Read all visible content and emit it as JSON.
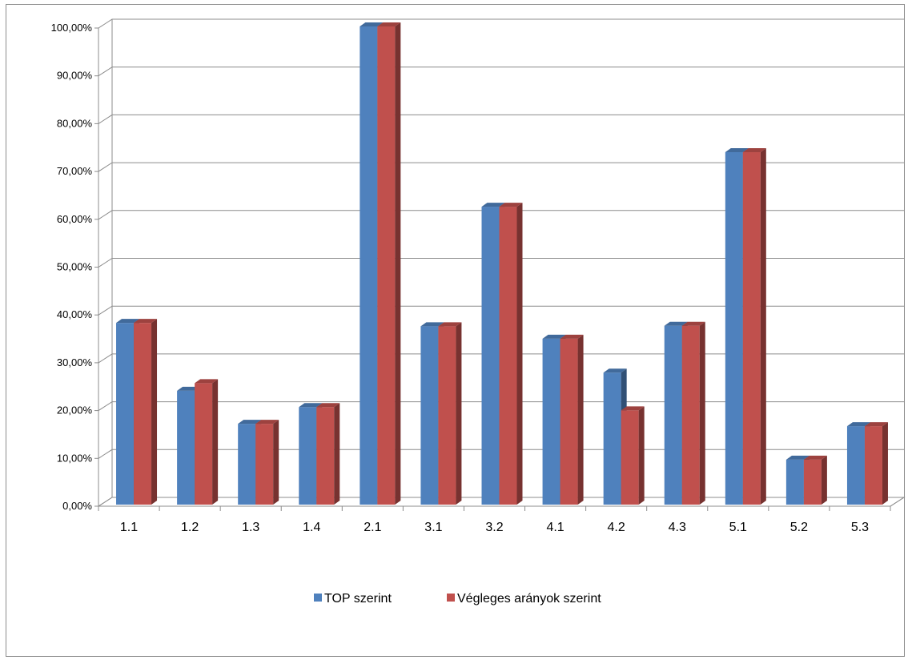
{
  "chart_data": {
    "type": "bar",
    "categories": [
      "1.1",
      "1.2",
      "1.3",
      "1.4",
      "2.1",
      "3.1",
      "3.2",
      "4.1",
      "4.2",
      "4.3",
      "5.1",
      "5.2",
      "5.3"
    ],
    "series": [
      {
        "name": "TOP szerint",
        "color": "#4f81bd",
        "values": [
          38.0,
          23.8,
          16.9,
          20.4,
          100.0,
          37.3,
          62.3,
          34.7,
          27.6,
          37.4,
          73.7,
          9.4,
          16.4
        ]
      },
      {
        "name": "Végleges arányok szerint",
        "color": "#c0504d",
        "values": [
          38.0,
          25.4,
          16.9,
          20.4,
          100.0,
          37.3,
          62.3,
          34.7,
          19.7,
          37.4,
          73.7,
          9.4,
          16.4
        ]
      }
    ],
    "yticks": [
      "0,00%",
      "10,00%",
      "20,00%",
      "30,00%",
      "40,00%",
      "50,00%",
      "60,00%",
      "70,00%",
      "80,00%",
      "90,00%",
      "100,00%"
    ],
    "ylim": [
      0,
      100
    ],
    "grid": true,
    "legend_position": "bottom",
    "title": "",
    "xlabel": "",
    "ylabel": ""
  }
}
